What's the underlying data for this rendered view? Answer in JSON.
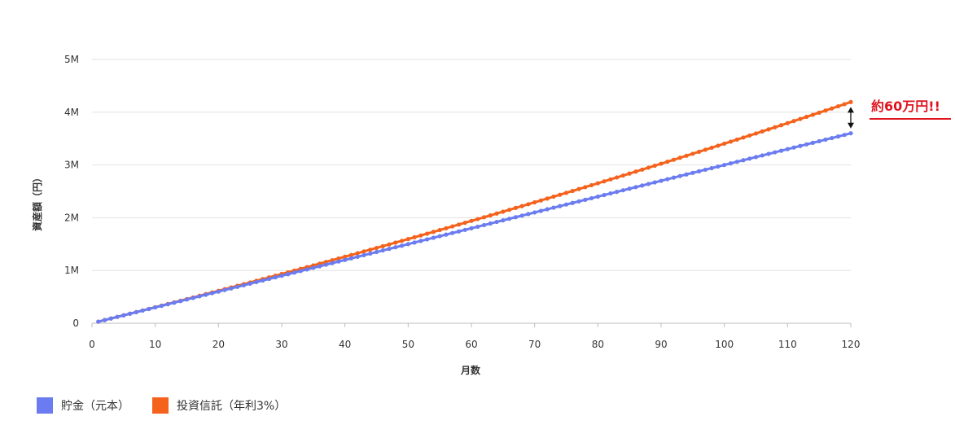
{
  "chart_data": {
    "type": "line",
    "xlabel": "月数",
    "ylabel": "資産額（円）",
    "xlim": [
      0,
      120
    ],
    "ylim": [
      0,
      5000000
    ],
    "x_ticks": [
      "0",
      "10",
      "20",
      "30",
      "40",
      "50",
      "60",
      "70",
      "80",
      "90",
      "100",
      "110",
      "120"
    ],
    "y_ticks": [
      "0",
      "1M",
      "2M",
      "3M",
      "4M",
      "5M"
    ],
    "grid": "horizontal",
    "legend_position": "bottom-left",
    "series": [
      {
        "name": "貯金（元本）",
        "color": "#6a7cf0",
        "x_start": 1,
        "x_end": 120,
        "y_start": 30000,
        "y_end": 3600000
      },
      {
        "name": "投資信託（年利3%）",
        "color": "#f4621c",
        "monthly_deposit": 30000,
        "annual_rate": 0.03,
        "x_start": 1,
        "x_end": 120
      }
    ],
    "annotation": {
      "text": "約60万円!!",
      "color": "#e0141e",
      "x": 120
    }
  }
}
